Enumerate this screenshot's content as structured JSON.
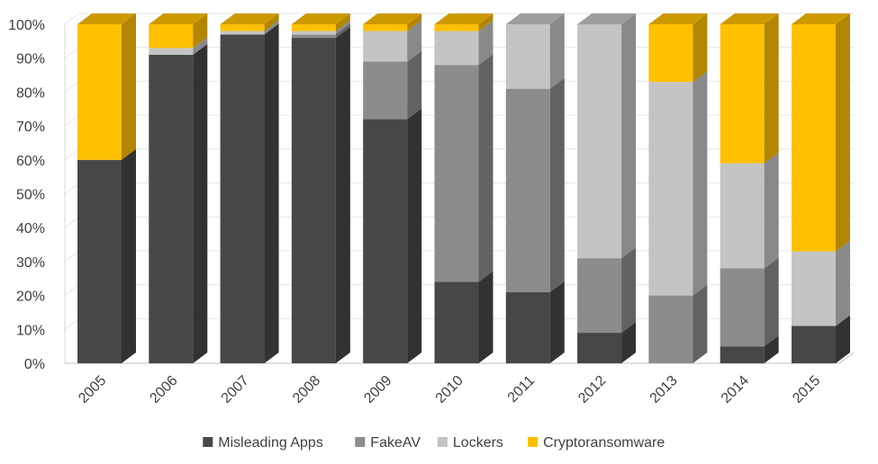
{
  "chart_data": {
    "type": "bar",
    "stacked": true,
    "percent_stacked": true,
    "three_d": true,
    "categories": [
      "2005",
      "2006",
      "2007",
      "2008",
      "2009",
      "2010",
      "2011",
      "2012",
      "2013",
      "2014",
      "2015"
    ],
    "series": [
      {
        "name": "Misleading Apps",
        "color": "#474747",
        "values": [
          60,
          91,
          97,
          96,
          72,
          24,
          21,
          9,
          0,
          5,
          11
        ]
      },
      {
        "name": "FakeAV",
        "color": "#8c8c8c",
        "values": [
          0,
          0,
          0,
          1,
          17,
          64,
          60,
          22,
          20,
          23,
          0
        ]
      },
      {
        "name": "Lockers",
        "color": "#c4c4c4",
        "values": [
          0,
          2,
          1,
          1,
          9,
          10,
          19,
          69,
          63,
          31,
          22
        ]
      },
      {
        "name": "Cryptoransomware",
        "color": "#ffc000",
        "values": [
          40,
          7,
          2,
          2,
          2,
          2,
          0,
          0,
          17,
          41,
          67
        ]
      }
    ],
    "ylim": [
      0,
      100
    ],
    "y_ticks": [
      "0%",
      "10%",
      "20%",
      "30%",
      "40%",
      "50%",
      "60%",
      "70%",
      "80%",
      "90%",
      "100%"
    ],
    "grid": true,
    "legend_position": "bottom"
  }
}
